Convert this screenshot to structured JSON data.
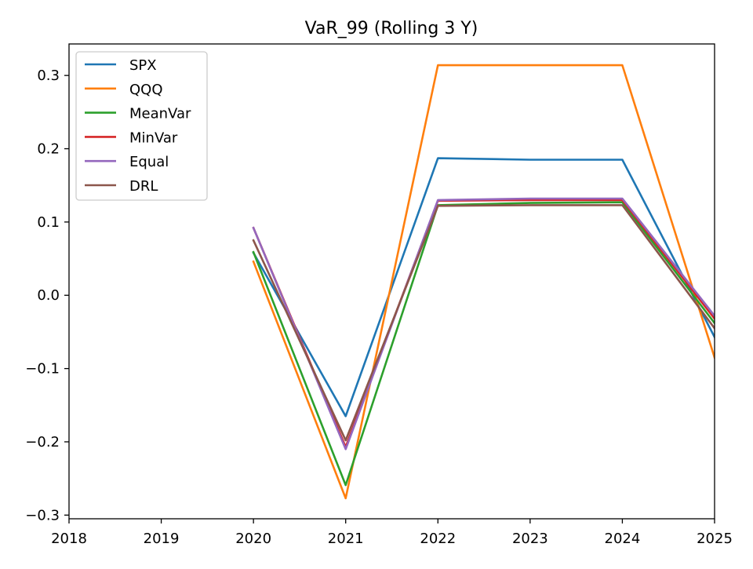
{
  "chart_data": {
    "type": "line",
    "title": "VaR_99 (Rolling 3 Y)",
    "xlabel": "",
    "ylabel": "",
    "xlim": [
      2018,
      2025
    ],
    "ylim": [
      -0.305,
      0.343
    ],
    "x_ticks": [
      2018,
      2019,
      2020,
      2021,
      2022,
      2023,
      2024,
      2025
    ],
    "x_tick_labels": [
      "2018",
      "2019",
      "2020",
      "2021",
      "2022",
      "2023",
      "2024",
      "2025"
    ],
    "y_ticks": [
      -0.3,
      -0.2,
      -0.1,
      0.0,
      0.1,
      0.2,
      0.3
    ],
    "y_tick_labels": [
      "−0.3",
      "−0.2",
      "−0.1",
      "0.0",
      "0.1",
      "0.2",
      "0.3"
    ],
    "grid": false,
    "legend_position": "upper-left",
    "x": [
      2020,
      2021,
      2022,
      2023,
      2024,
      2025
    ],
    "series": [
      {
        "name": "SPX",
        "color": "#1f77b4",
        "values": [
          0.058,
          -0.165,
          0.187,
          0.185,
          0.185,
          -0.057
        ]
      },
      {
        "name": "QQQ",
        "color": "#ff7f0e",
        "values": [
          0.046,
          -0.277,
          0.314,
          0.314,
          0.314,
          -0.085
        ]
      },
      {
        "name": "MeanVar",
        "color": "#2ca02c",
        "values": [
          0.059,
          -0.259,
          0.123,
          0.126,
          0.127,
          -0.038
        ]
      },
      {
        "name": "MinVar",
        "color": "#d62728",
        "values": [
          0.092,
          -0.207,
          0.129,
          0.13,
          0.13,
          -0.032
        ]
      },
      {
        "name": "Equal",
        "color": "#9467bd",
        "values": [
          0.092,
          -0.21,
          0.13,
          0.132,
          0.132,
          -0.028
        ]
      },
      {
        "name": "DRL",
        "color": "#8c564b",
        "values": [
          0.075,
          -0.198,
          0.122,
          0.123,
          0.123,
          -0.045
        ]
      }
    ]
  }
}
